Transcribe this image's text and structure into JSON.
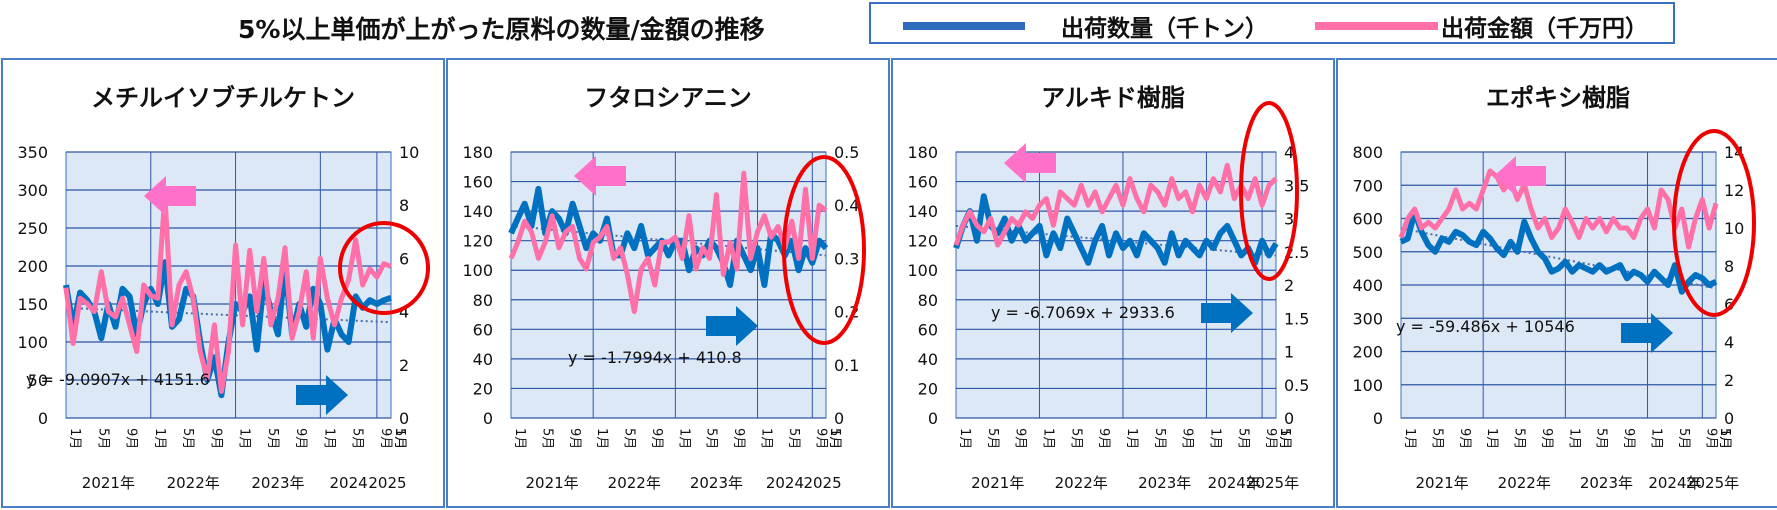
{
  "page": {
    "title": "5%以上単価が上がった原料の数量/金額の推移",
    "legend": [
      {
        "label": "出荷数量（千トン）",
        "color": "#2f6bbf"
      },
      {
        "label": "出荷金額（千万円）",
        "color": "#ff70a8"
      }
    ]
  },
  "chart_data": [
    {
      "type": "line",
      "title": "メチルイソブチルケトン",
      "x_month_labels": [
        "1月",
        "5月",
        "9月",
        "1月",
        "5月",
        "9月",
        "1月",
        "5月",
        "9月",
        "1月",
        "5月",
        "9月",
        "1月",
        "5月"
      ],
      "year_labels": [
        "2021年",
        "2022年",
        "2023年",
        "2024",
        "2025"
      ],
      "y_left": {
        "min": 0,
        "max": 350,
        "ticks": [
          "0",
          "50",
          "100",
          "150",
          "200",
          "250",
          "300",
          "350"
        ]
      },
      "y_right": {
        "min": 0,
        "max": 10,
        "ticks": [
          "0",
          "2",
          "4",
          "6",
          "8",
          "10"
        ]
      },
      "trendline_label": "y = -9.0907x + 4151.6",
      "trend": [
        145,
        126
      ],
      "series": [
        {
          "axis": "left",
          "color": "#0070c0",
          "values": [
            175,
            120,
            165,
            155,
            140,
            105,
            150,
            120,
            170,
            160,
            110,
            150,
            170,
            150,
            205,
            120,
            130,
            170,
            160,
            100,
            50,
            80,
            30,
            100,
            150,
            140,
            160,
            90,
            180,
            140,
            110,
            200,
            110,
            150,
            120,
            170,
            150,
            90,
            130,
            110,
            100,
            160,
            145,
            155,
            150,
            155,
            158
          ]
        },
        {
          "axis": "right",
          "color": "#ff70a8",
          "values": [
            4.9,
            2.8,
            4.5,
            4.3,
            4.0,
            5.5,
            4.0,
            3.8,
            4.5,
            3.5,
            2.5,
            5.0,
            4.6,
            4.5,
            8.4,
            3.5,
            5.0,
            5.5,
            4.5,
            2.5,
            1.5,
            3.5,
            1.0,
            2.5,
            6.5,
            3.5,
            6.3,
            4.0,
            6.0,
            3.5,
            4.5,
            6.4,
            3.0,
            4.0,
            5.5,
            3.0,
            6.0,
            4.5,
            3.5,
            4.5,
            5.2,
            6.7,
            5.0,
            5.6,
            5.3,
            5.8,
            5.7
          ]
        }
      ]
    },
    {
      "type": "line",
      "title": "フタロシアニン",
      "x_month_labels": [
        "1月",
        "5月",
        "9月",
        "1月",
        "5月",
        "9月",
        "1月",
        "5月",
        "9月",
        "1月",
        "5月",
        "9月",
        "1月",
        "5月"
      ],
      "year_labels": [
        "2021年",
        "2022年",
        "2023年",
        "2024",
        "2025"
      ],
      "y_left": {
        "min": 0,
        "max": 180,
        "ticks": [
          "0",
          "20",
          "40",
          "60",
          "80",
          "100",
          "120",
          "140",
          "160",
          "180"
        ]
      },
      "y_right": {
        "min": 0,
        "max": 0.5,
        "ticks": [
          "0",
          "0.1",
          "0.2",
          "0.3",
          "0.4",
          "0.5"
        ]
      },
      "trendline_label": "y = -1.7994x + 410.8",
      "trend": [
        130,
        110
      ],
      "series": [
        {
          "axis": "left",
          "color": "#0070c0",
          "values": [
            125,
            135,
            145,
            130,
            155,
            125,
            140,
            135,
            125,
            145,
            130,
            115,
            125,
            120,
            135,
            110,
            110,
            125,
            115,
            130,
            110,
            115,
            120,
            110,
            120,
            120,
            100,
            115,
            110,
            120,
            115,
            105,
            90,
            120,
            110,
            100,
            115,
            90,
            125,
            120,
            110,
            120,
            100,
            115,
            105,
            120,
            115
          ]
        },
        {
          "axis": "right",
          "color": "#ff70a8",
          "values": [
            0.3,
            0.33,
            0.37,
            0.35,
            0.3,
            0.33,
            0.38,
            0.32,
            0.35,
            0.36,
            0.3,
            0.28,
            0.33,
            0.34,
            0.36,
            0.3,
            0.32,
            0.27,
            0.2,
            0.28,
            0.3,
            0.25,
            0.33,
            0.33,
            0.34,
            0.3,
            0.38,
            0.28,
            0.32,
            0.3,
            0.42,
            0.27,
            0.33,
            0.28,
            0.46,
            0.3,
            0.35,
            0.38,
            0.34,
            0.36,
            0.32,
            0.37,
            0.3,
            0.43,
            0.3,
            0.4,
            0.39
          ]
        }
      ]
    },
    {
      "type": "line",
      "title": "アルキド樹脂",
      "x_month_labels": [
        "1月",
        "5月",
        "9月",
        "1月",
        "5月",
        "9月",
        "1月",
        "5月",
        "9月",
        "1月",
        "5月",
        "9月",
        "1月",
        "5月"
      ],
      "year_labels": [
        "2021年",
        "2022年",
        "2023年",
        "2024年",
        "2025年"
      ],
      "y_left": {
        "min": 0,
        "max": 180,
        "ticks": [
          "0",
          "20",
          "40",
          "60",
          "80",
          "100",
          "120",
          "140",
          "160",
          "180"
        ]
      },
      "y_right": {
        "min": 0,
        "max": 4,
        "ticks": [
          "0",
          "0.5",
          "1",
          "1.5",
          "2",
          "2.5",
          "3",
          "3.5",
          "4"
        ]
      },
      "trendline_label": "y = -6.7069x + 2933.6",
      "trend": [
        130,
        110
      ],
      "series": [
        {
          "axis": "left",
          "color": "#0070c0",
          "values": [
            115,
            130,
            140,
            120,
            150,
            130,
            125,
            135,
            120,
            130,
            120,
            125,
            130,
            110,
            125,
            115,
            135,
            125,
            115,
            105,
            120,
            130,
            110,
            125,
            115,
            120,
            110,
            125,
            120,
            115,
            105,
            125,
            110,
            120,
            115,
            110,
            120,
            115,
            125,
            130,
            120,
            110,
            115,
            105,
            120,
            110,
            118
          ]
        },
        {
          "axis": "right",
          "color": "#ff70a8",
          "values": [
            2.6,
            2.9,
            3.1,
            2.9,
            2.8,
            3.0,
            2.6,
            2.8,
            3.0,
            2.9,
            3.1,
            3.0,
            3.2,
            3.3,
            2.9,
            3.4,
            3.3,
            3.2,
            3.5,
            3.2,
            3.4,
            3.1,
            3.3,
            3.5,
            3.2,
            3.6,
            3.3,
            3.1,
            3.5,
            3.4,
            3.2,
            3.6,
            3.3,
            3.4,
            3.1,
            3.5,
            3.3,
            3.6,
            3.4,
            3.8,
            3.3,
            3.5,
            3.3,
            3.6,
            3.2,
            3.5,
            3.6
          ]
        }
      ]
    },
    {
      "type": "line",
      "title": "エポキシ樹脂",
      "x_month_labels": [
        "1月",
        "5月",
        "9月",
        "1月",
        "5月",
        "9月",
        "1月",
        "5月",
        "9月",
        "1月",
        "5月",
        "9月",
        "1月",
        "5月"
      ],
      "year_labels": [
        "2021年",
        "2022年",
        "2023年",
        "2024年",
        "2025年"
      ],
      "y_left": {
        "min": 0,
        "max": 800,
        "ticks": [
          "0",
          "100",
          "200",
          "300",
          "400",
          "500",
          "600",
          "700",
          "800"
        ]
      },
      "y_right": {
        "min": 0,
        "max": 14,
        "ticks": [
          "0",
          "2",
          "4",
          "6",
          "8",
          "10",
          "12",
          "14"
        ]
      },
      "trendline_label": "y = -59.486x + 10546",
      "trend": [
        570,
        390
      ],
      "series": [
        {
          "axis": "left",
          "color": "#0070c0",
          "values": [
            530,
            540,
            620,
            560,
            520,
            500,
            540,
            530,
            560,
            550,
            530,
            520,
            560,
            540,
            510,
            490,
            530,
            500,
            590,
            540,
            500,
            480,
            440,
            450,
            470,
            440,
            460,
            450,
            440,
            460,
            440,
            450,
            460,
            420,
            440,
            430,
            410,
            440,
            420,
            400,
            460,
            380,
            410,
            430,
            420,
            400,
            410
          ]
        },
        {
          "axis": "right",
          "color": "#ff70a8",
          "values": [
            9.5,
            10.5,
            11.0,
            10.0,
            10.3,
            10.0,
            10.5,
            11.0,
            12.0,
            11.0,
            11.3,
            11.0,
            12.0,
            13.0,
            12.7,
            12.0,
            12.5,
            11.5,
            12.3,
            11.0,
            10.0,
            10.5,
            9.5,
            10.0,
            11.0,
            10.3,
            9.5,
            10.5,
            10.0,
            10.5,
            9.8,
            10.5,
            10.0,
            10.0,
            9.5,
            10.5,
            11.0,
            10.0,
            12.0,
            11.5,
            10.0,
            11.0,
            9.0,
            10.5,
            11.5,
            10.0,
            11.3
          ]
        }
      ]
    }
  ]
}
